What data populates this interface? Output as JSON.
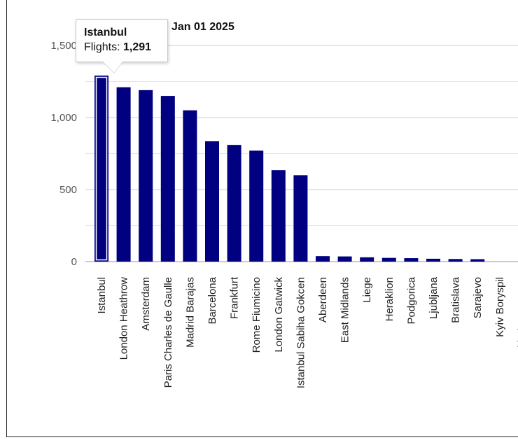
{
  "chart_data": {
    "type": "bar",
    "title": "Jan 01 2025",
    "xlabel": "",
    "ylabel": "",
    "ylim": [
      0,
      1500
    ],
    "yticks": [
      0,
      500,
      1000,
      1500
    ],
    "ytick_labels": [
      "0",
      "500",
      "1,000",
      "1,500"
    ],
    "grid": true,
    "categories": [
      "Istanbul",
      "London Heathrow",
      "Amsterdam",
      "Paris Charles de Gaulle",
      "Madrid Barajas",
      "Barcelona",
      "Frankfurt",
      "Rome Fiumicino",
      "London Gatwick",
      "Istanbul Sabiha Gokcen",
      "Aberdeen",
      "East Midlands",
      "Liege",
      "Heraklion",
      "Podgorica",
      "Ljubljana",
      "Bratislava",
      "Sarajevo",
      "Kyiv Boryspil",
      "Stockholm Bromma"
    ],
    "values": [
      1291,
      1210,
      1190,
      1150,
      1050,
      835,
      810,
      770,
      635,
      600,
      38,
      36,
      30,
      26,
      24,
      20,
      18,
      17,
      0,
      0
    ],
    "bar_color": "#000080",
    "highlight_index": 0
  },
  "tooltip": {
    "city": "Istanbul",
    "label": "Flights:",
    "value": "1,291"
  }
}
